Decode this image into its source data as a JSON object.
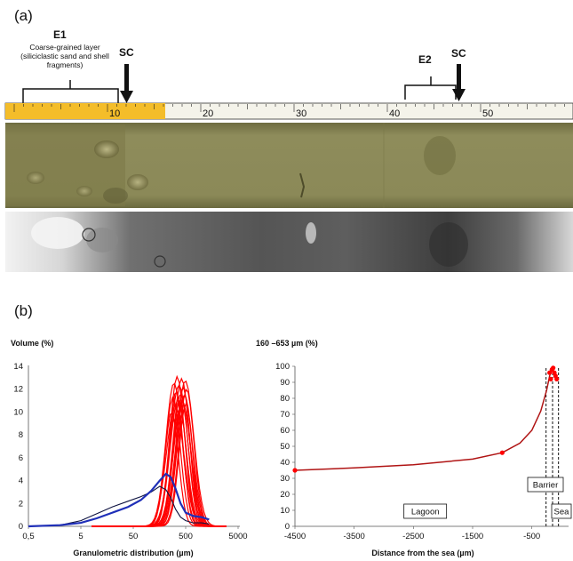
{
  "panel_a": {
    "label": "(a)",
    "e1_title": "E1",
    "e1_caption": [
      "Coarse-grained layer",
      "(siliciclastic sand and shell",
      "fragments)"
    ],
    "sc_left": "SC",
    "e2_title": "E2",
    "sc_right": "SC",
    "ruler_ticks": [
      "10",
      "20",
      "30",
      "40",
      "50",
      "6"
    ]
  },
  "panel_b": {
    "label": "(b)"
  },
  "colors": {
    "red": "#ff0000",
    "blue": "#1f2fb8",
    "navy": "#0d1240",
    "darkred": "#b01414",
    "core_olive": "#8d8c5a",
    "ruler_yellow": "#f4bd2a"
  },
  "chart_data": [
    {
      "type": "line",
      "ylabel": "Volume (%)",
      "xlabel": "Granulometric distribution (µm)",
      "x_scale": "log",
      "xticks": [
        "0,5",
        "5",
        "50",
        "500",
        "5000"
      ],
      "xtick_values": [
        0.5,
        5,
        50,
        500,
        5000
      ],
      "yticks": [
        "0",
        "2",
        "4",
        "6",
        "8",
        "10",
        "12",
        "14"
      ],
      "ylim": [
        0,
        14
      ],
      "xlim": [
        0.5,
        5000
      ],
      "series": [
        {
          "color": "red",
          "count": 18,
          "peak_range_um": [
            270,
            520
          ],
          "peak_range_pct": [
            10.0,
            13.1
          ]
        },
        {
          "color": "blue",
          "values": [
            [
              0.5,
              0
            ],
            [
              2,
              0.1
            ],
            [
              5,
              0.3
            ],
            [
              10,
              0.7
            ],
            [
              20,
              1.2
            ],
            [
              40,
              1.7
            ],
            [
              70,
              2.3
            ],
            [
              110,
              3.1
            ],
            [
              160,
              4.0
            ],
            [
              210,
              4.6
            ],
            [
              260,
              4.3
            ],
            [
              320,
              3.3
            ],
            [
              400,
              2.0
            ],
            [
              500,
              1.2
            ],
            [
              700,
              0.9
            ],
            [
              1000,
              0.8
            ],
            [
              1400,
              0.6
            ]
          ]
        },
        {
          "color": "navy",
          "values": [
            [
              0.5,
              0
            ],
            [
              2,
              0.1
            ],
            [
              5,
              0.5
            ],
            [
              10,
              1.1
            ],
            [
              20,
              1.7
            ],
            [
              40,
              2.2
            ],
            [
              70,
              2.6
            ],
            [
              110,
              3.0
            ],
            [
              160,
              3.5
            ],
            [
              210,
              3.2
            ],
            [
              260,
              2.5
            ],
            [
              320,
              1.5
            ],
            [
              400,
              0.8
            ],
            [
              500,
              0.5
            ],
            [
              700,
              0.3
            ],
            [
              1000,
              0.3
            ],
            [
              1400,
              0.2
            ]
          ]
        }
      ]
    },
    {
      "type": "line",
      "ylabel": "160 –653 µm (%)",
      "xlabel": "Distance from the sea (µm)",
      "xticks": [
        "-4500",
        "-3500",
        "-2500",
        "-1500",
        "-500"
      ],
      "xtick_values": [
        -4500,
        -3500,
        -2500,
        -1500,
        -500
      ],
      "yticks": [
        "0",
        "10",
        "20",
        "30",
        "40",
        "50",
        "60",
        "70",
        "80",
        "90",
        "100"
      ],
      "xlim": [
        -4500,
        0
      ],
      "ylim": [
        0,
        100
      ],
      "series": [
        {
          "color": "darkred",
          "values": [
            [
              -4500,
              35
            ],
            [
              -3500,
              36.5
            ],
            [
              -2500,
              38.5
            ],
            [
              -1500,
              42
            ],
            [
              -1000,
              46
            ],
            [
              -700,
              52
            ],
            [
              -500,
              60
            ],
            [
              -350,
              72
            ],
            [
              -250,
              85
            ],
            [
              -200,
              94
            ],
            [
              -170,
              97
            ]
          ]
        },
        {
          "color": "red",
          "markers": [
            [
              -4500,
              35
            ],
            [
              -1000,
              46
            ],
            [
              -200,
              96
            ],
            [
              -180,
              92
            ],
            [
              -160,
              98
            ],
            [
              -140,
              99
            ],
            [
              -120,
              96
            ],
            [
              -100,
              94
            ],
            [
              -80,
              92
            ]
          ]
        }
      ],
      "annotations": [
        {
          "text": "Lagoon",
          "x": -2300
        },
        {
          "text": "Barrier",
          "x": -150
        },
        {
          "text": "Sea",
          "x": 60
        }
      ],
      "dashed_lines_x": [
        -260,
        -150,
        -50
      ]
    }
  ]
}
